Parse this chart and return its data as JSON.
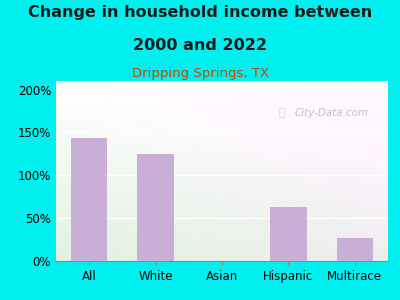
{
  "title_line1": "Change in household income between",
  "title_line2": "2000 and 2022",
  "subtitle": "Dripping Springs, TX",
  "categories": [
    "All",
    "White",
    "Asian",
    "Hispanic",
    "Multirace"
  ],
  "values": [
    143,
    125,
    0,
    63,
    27
  ],
  "bar_color": "#c9aed6",
  "outer_bg": "#00efef",
  "title_fontsize": 11.5,
  "subtitle_fontsize": 9.5,
  "subtitle_color": "#b84c00",
  "yticks": [
    0,
    50,
    100,
    150,
    200
  ],
  "ylim": [
    0,
    210
  ],
  "watermark": "City-Data.com",
  "watermark_color": "#b0b8b0",
  "tick_fontsize": 8.5,
  "xlabel_fontsize": 8.5
}
